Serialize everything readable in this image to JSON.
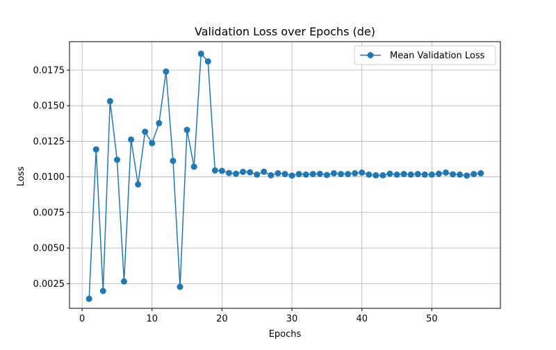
{
  "chart_data": {
    "type": "line",
    "title": "Validation Loss over Epochs (de)",
    "xlabel": "Epochs",
    "ylabel": "Loss",
    "xlim": [
      -1.8,
      59.8
    ],
    "ylim": [
      0.00076,
      0.0195
    ],
    "x_ticks": [
      0,
      10,
      20,
      30,
      40,
      50
    ],
    "x_tick_labels": [
      "0",
      "10",
      "20",
      "30",
      "40",
      "50"
    ],
    "y_ticks": [
      0.0025,
      0.005,
      0.0075,
      0.01,
      0.0125,
      0.015,
      0.0175
    ],
    "y_tick_labels": [
      "0.0025",
      "0.0050",
      "0.0075",
      "0.0100",
      "0.0125",
      "0.0150",
      "0.0175"
    ],
    "grid": true,
    "legend_position": "top-right",
    "series": [
      {
        "name": "Mean Validation Loss",
        "color": "#1f77b4",
        "marker": "circle",
        "x": [
          1,
          2,
          3,
          4,
          5,
          6,
          7,
          8,
          9,
          10,
          11,
          12,
          13,
          14,
          15,
          16,
          17,
          18,
          19,
          20,
          21,
          22,
          23,
          24,
          25,
          26,
          27,
          28,
          29,
          30,
          31,
          32,
          33,
          34,
          35,
          36,
          37,
          38,
          39,
          40,
          41,
          42,
          43,
          44,
          45,
          46,
          47,
          48,
          49,
          50,
          51,
          52,
          53,
          54,
          55,
          56,
          57
        ],
        "y": [
          0.00143,
          0.01193,
          0.00198,
          0.01532,
          0.0112,
          0.00265,
          0.01262,
          0.00947,
          0.01317,
          0.01237,
          0.01377,
          0.0174,
          0.01112,
          0.00227,
          0.0133,
          0.01071,
          0.01865,
          0.01811,
          0.01045,
          0.01042,
          0.01027,
          0.01022,
          0.01035,
          0.01032,
          0.01016,
          0.01036,
          0.01011,
          0.01025,
          0.0102,
          0.01009,
          0.0102,
          0.01016,
          0.0102,
          0.01021,
          0.01013,
          0.01025,
          0.0102,
          0.0102,
          0.01025,
          0.0103,
          0.01016,
          0.01011,
          0.01011,
          0.01022,
          0.01016,
          0.0102,
          0.01016,
          0.0102,
          0.01016,
          0.01016,
          0.01022,
          0.0103,
          0.01018,
          0.01016,
          0.01009,
          0.0102,
          0.01025
        ]
      }
    ]
  }
}
